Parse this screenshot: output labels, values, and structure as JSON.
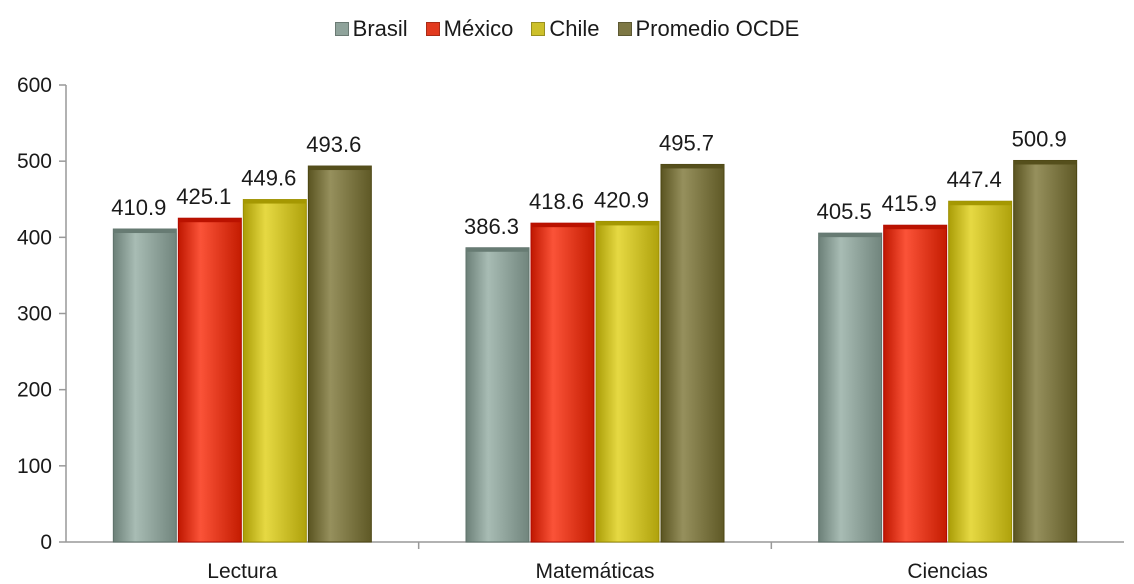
{
  "chart_data": {
    "type": "bar",
    "categories": [
      "Lectura",
      "Matemáticas",
      "Ciencias"
    ],
    "series": [
      {
        "name": "Brasil",
        "values": [
          410.9,
          386.3,
          405.5
        ],
        "color": "#8fa39b"
      },
      {
        "name": "México",
        "values": [
          425.1,
          418.6,
          415.9
        ],
        "color": "#e23a1f"
      },
      {
        "name": "Chile",
        "values": [
          449.6,
          420.9,
          447.4
        ],
        "color": "#cdc02a"
      },
      {
        "name": "Promedio OCDE",
        "values": [
          493.6,
          495.7,
          500.9
        ],
        "color": "#7d7744"
      }
    ],
    "ylim": [
      0,
      600
    ],
    "yticks": [
      0,
      100,
      200,
      300,
      400,
      500,
      600
    ],
    "title": "",
    "xlabel": "",
    "ylabel": "",
    "legend_position": "top-center",
    "grid": false,
    "data_labels": true
  }
}
